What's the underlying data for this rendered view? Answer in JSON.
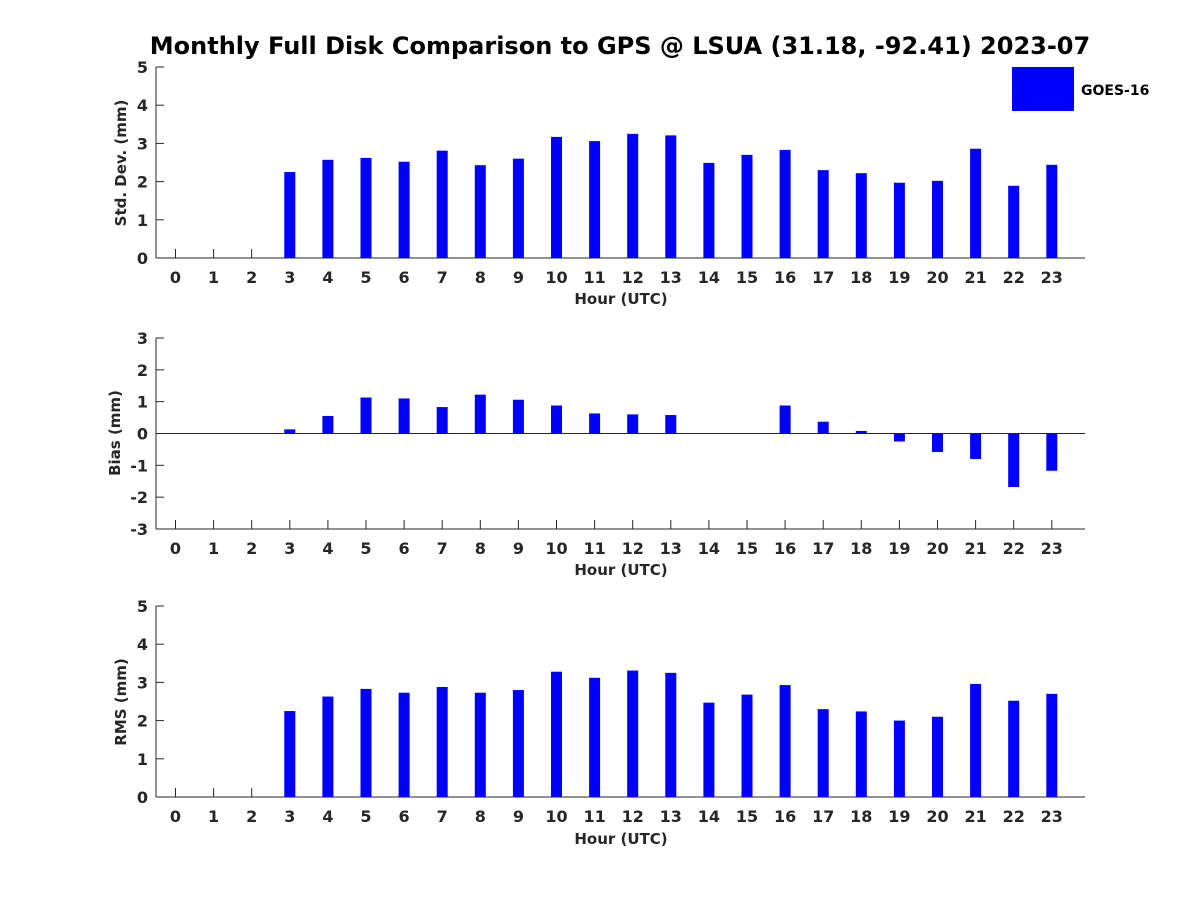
{
  "figure": {
    "title": "Monthly Full Disk Comparison to GPS @ LSUA (31.18, -92.41) 2023-07",
    "legend": {
      "label": "GOES-16",
      "color": "#0000ff"
    }
  },
  "chart_data": [
    {
      "type": "bar",
      "xlabel": "Hour (UTC)",
      "ylabel": "Std. Dev. (mm)",
      "ylim": [
        0,
        5
      ],
      "yticks": [
        0,
        1,
        2,
        3,
        4,
        5
      ],
      "categories": [
        "0",
        "1",
        "2",
        "3",
        "4",
        "5",
        "6",
        "7",
        "8",
        "9",
        "10",
        "11",
        "12",
        "13",
        "14",
        "15",
        "16",
        "17",
        "18",
        "19",
        "20",
        "21",
        "22",
        "23"
      ],
      "series": [
        {
          "name": "GOES-16",
          "color": "#0000ff",
          "values": [
            null,
            null,
            null,
            2.25,
            2.57,
            2.62,
            2.52,
            2.81,
            2.43,
            2.6,
            3.17,
            3.06,
            3.25,
            3.21,
            2.49,
            2.7,
            2.83,
            2.3,
            2.22,
            1.97,
            2.02,
            2.86,
            1.89,
            2.44
          ]
        }
      ],
      "legend": "top-right"
    },
    {
      "type": "bar",
      "xlabel": "Hour (UTC)",
      "ylabel": "Bias (mm)",
      "ylim": [
        -3,
        3
      ],
      "yticks": [
        -3,
        -2,
        -1,
        0,
        1,
        2,
        3
      ],
      "categories": [
        "0",
        "1",
        "2",
        "3",
        "4",
        "5",
        "6",
        "7",
        "8",
        "9",
        "10",
        "11",
        "12",
        "13",
        "14",
        "15",
        "16",
        "17",
        "18",
        "19",
        "20",
        "21",
        "22",
        "23"
      ],
      "series": [
        {
          "name": "GOES-16",
          "color": "#0000ff",
          "values": [
            null,
            null,
            null,
            0.13,
            0.55,
            1.13,
            1.1,
            0.83,
            1.22,
            1.06,
            0.88,
            0.63,
            0.6,
            0.58,
            null,
            null,
            0.88,
            0.37,
            0.08,
            -0.25,
            -0.58,
            -0.8,
            -1.68,
            -1.17
          ]
        }
      ]
    },
    {
      "type": "bar",
      "xlabel": "Hour (UTC)",
      "ylabel": "RMS (mm)",
      "ylim": [
        0,
        5
      ],
      "yticks": [
        0,
        1,
        2,
        3,
        4,
        5
      ],
      "categories": [
        "0",
        "1",
        "2",
        "3",
        "4",
        "5",
        "6",
        "7",
        "8",
        "9",
        "10",
        "11",
        "12",
        "13",
        "14",
        "15",
        "16",
        "17",
        "18",
        "19",
        "20",
        "21",
        "22",
        "23"
      ],
      "series": [
        {
          "name": "GOES-16",
          "color": "#0000ff",
          "values": [
            null,
            null,
            null,
            2.25,
            2.63,
            2.83,
            2.73,
            2.88,
            2.73,
            2.8,
            3.28,
            3.12,
            3.31,
            3.25,
            2.47,
            2.68,
            2.93,
            2.3,
            2.24,
            2.0,
            2.1,
            2.96,
            2.52,
            2.7
          ]
        }
      ]
    }
  ]
}
